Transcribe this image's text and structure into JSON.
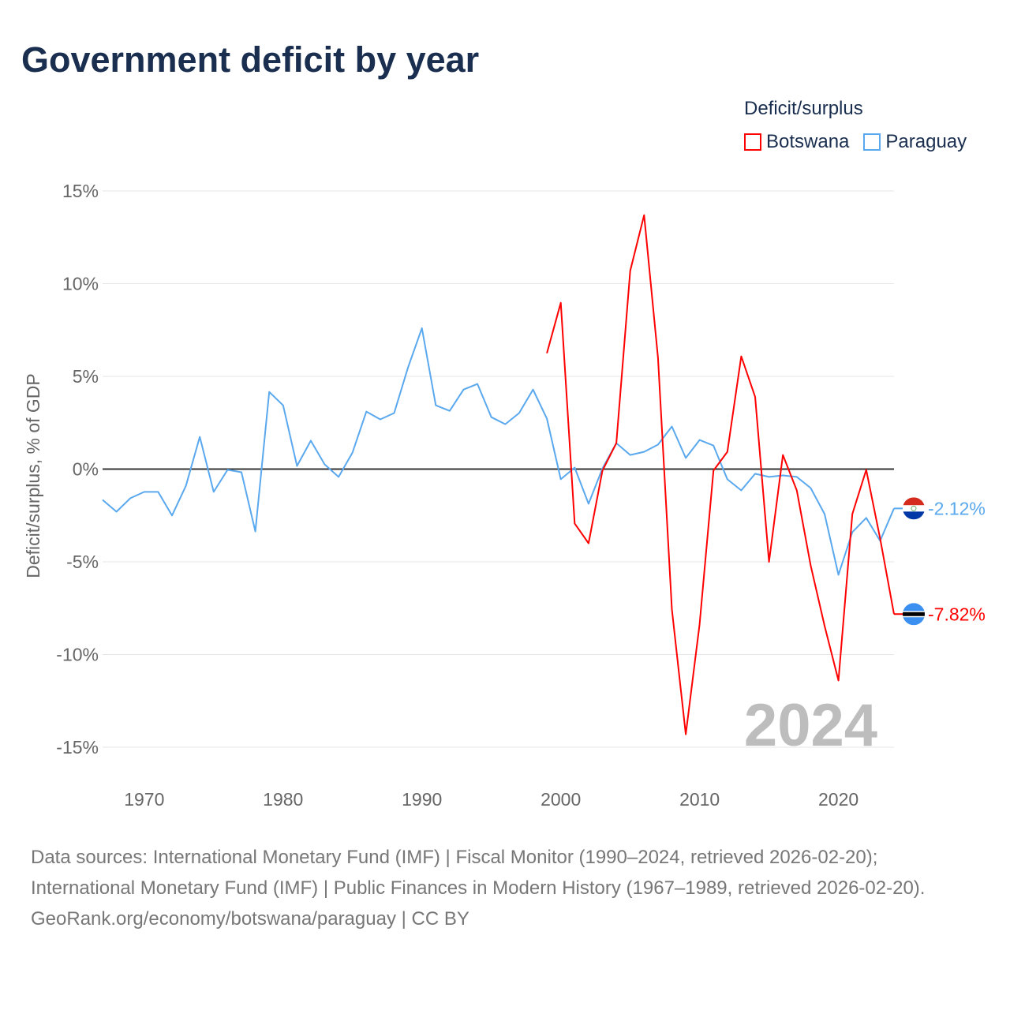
{
  "title": "Government deficit by year",
  "legend": {
    "title": "Deficit/surplus",
    "items": [
      {
        "label": "Botswana",
        "color": "#ff0000"
      },
      {
        "label": "Paraguay",
        "color": "#5aa8ee"
      }
    ]
  },
  "footer": {
    "line1": "Data sources: International Monetary Fund (IMF) | Fiscal Monitor (1990–2024, retrieved 2026-02-20); International Monetary Fund (IMF) | Public Finances in Modern History (1967–1989, retrieved 2026-02-20).",
    "line2": "GeoRank.org/economy/botswana/paraguay | CC BY"
  },
  "chart_data": {
    "type": "line",
    "title": "Government deficit by year",
    "ylabel": "Deficit/surplus, % of GDP",
    "xlabel": "",
    "ylim": [
      -15,
      15
    ],
    "xlim": [
      1967,
      2024
    ],
    "yticks": [
      {
        "v": 15,
        "label": "15%"
      },
      {
        "v": 10,
        "label": "10%"
      },
      {
        "v": 5,
        "label": "5%"
      },
      {
        "v": 0,
        "label": "0%"
      },
      {
        "v": -5,
        "label": "-5%"
      },
      {
        "v": -10,
        "label": "-10%"
      },
      {
        "v": -15,
        "label": "-15%"
      }
    ],
    "xticks": [
      1970,
      1980,
      1990,
      2000,
      2010,
      2020
    ],
    "year_watermark": "2024",
    "legend_position": "top-right",
    "series": [
      {
        "name": "Botswana",
        "color": "#ff0000",
        "end_label": "-7.82%",
        "start": 1999,
        "values": [
          6.25,
          8.97,
          -2.93,
          -4.0,
          -0.08,
          1.4,
          10.7,
          13.7,
          6.0,
          -7.56,
          -14.3,
          -8.37,
          -0.08,
          0.93,
          6.08,
          3.9,
          -5.0,
          0.76,
          -1.15,
          -5.2,
          -8.45,
          -11.4,
          -2.42,
          -0.04,
          -3.74,
          -7.82
        ]
      },
      {
        "name": "Paraguay",
        "color": "#5aa8ee",
        "end_label": "-2.12%",
        "start": 1967,
        "values": [
          -1.66,
          -2.3,
          -1.57,
          -1.23,
          -1.23,
          -2.5,
          -0.9,
          1.74,
          -1.23,
          -0.04,
          -0.17,
          -3.36,
          4.16,
          3.44,
          0.17,
          1.53,
          0.25,
          -0.42,
          0.89,
          3.1,
          2.68,
          3.02,
          5.48,
          7.6,
          3.44,
          3.14,
          4.29,
          4.59,
          2.8,
          2.42,
          3.02,
          4.29,
          2.72,
          -0.55,
          0.08,
          -1.87,
          0.04,
          1.4,
          0.76,
          0.93,
          1.32,
          2.3,
          0.6,
          1.57,
          1.27,
          -0.55,
          -1.15,
          -0.25,
          -0.42,
          -0.34,
          -0.42,
          -1.02,
          -2.42,
          -5.7,
          -3.4,
          -2.63,
          -3.87,
          -2.12
        ]
      }
    ]
  }
}
